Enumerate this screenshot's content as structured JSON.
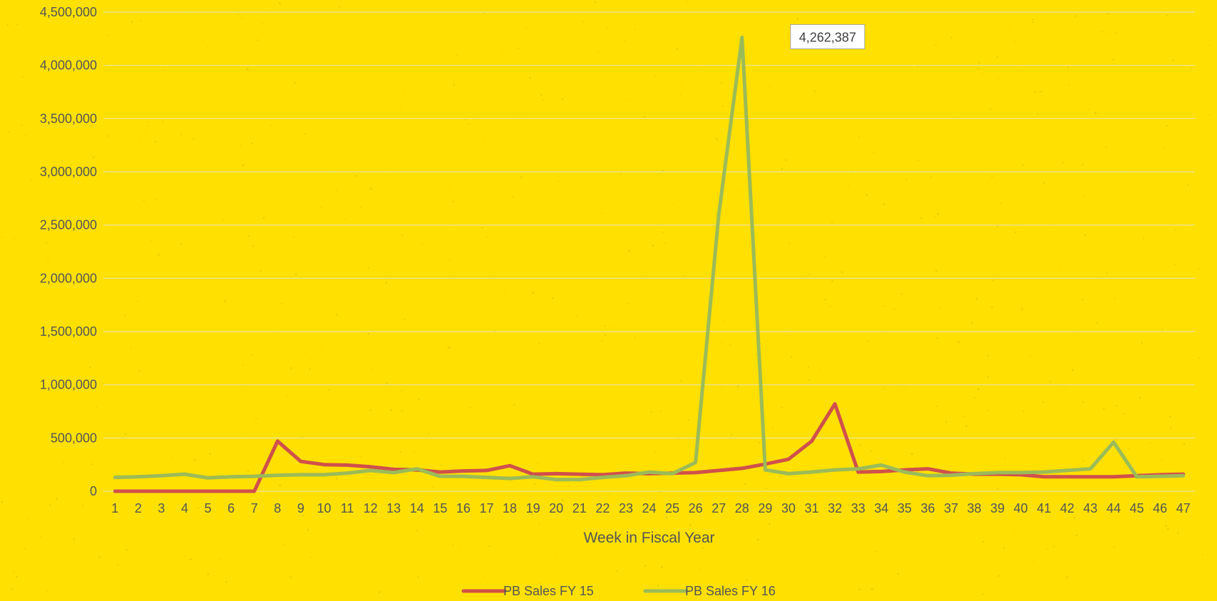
{
  "chart_data": {
    "type": "line",
    "title": "",
    "xlabel": "Week in Fiscal Year",
    "ylabel": "",
    "ylim": [
      0,
      4500000
    ],
    "y_ticks": [
      "0",
      "500,000",
      "1,000,000",
      "1,500,000",
      "2,000,000",
      "2,500,000",
      "3,000,000",
      "3,500,000",
      "4,000,000",
      "4,500,000"
    ],
    "x": [
      1,
      2,
      3,
      4,
      5,
      6,
      7,
      8,
      9,
      10,
      11,
      12,
      13,
      14,
      15,
      16,
      17,
      18,
      19,
      20,
      21,
      22,
      23,
      24,
      25,
      26,
      27,
      28,
      29,
      30,
      31,
      32,
      33,
      34,
      35,
      36,
      37,
      38,
      39,
      40,
      41,
      42,
      43,
      44,
      45,
      46,
      47
    ],
    "grid": true,
    "legend_position": "bottom",
    "series": [
      {
        "name": "PB Sales FY 15",
        "color": "#D0504B",
        "values": [
          0,
          0,
          0,
          0,
          0,
          0,
          0,
          470000,
          280000,
          250000,
          245000,
          230000,
          205000,
          200000,
          180000,
          190000,
          195000,
          240000,
          160000,
          165000,
          160000,
          155000,
          170000,
          165000,
          170000,
          175000,
          195000,
          215000,
          255000,
          300000,
          470000,
          820000,
          180000,
          185000,
          200000,
          210000,
          170000,
          160000,
          160000,
          155000,
          135000,
          135000,
          135000,
          135000,
          145000,
          155000,
          160000
        ]
      },
      {
        "name": "PB Sales FY 16",
        "color": "#9BBB59",
        "values": [
          130000,
          135000,
          145000,
          160000,
          125000,
          135000,
          140000,
          150000,
          155000,
          155000,
          170000,
          195000,
          175000,
          210000,
          140000,
          140000,
          130000,
          120000,
          135000,
          110000,
          110000,
          130000,
          145000,
          180000,
          165000,
          270000,
          2600000,
          4262387,
          200000,
          165000,
          180000,
          200000,
          210000,
          245000,
          180000,
          145000,
          150000,
          165000,
          175000,
          175000,
          180000,
          195000,
          210000,
          460000,
          135000,
          140000,
          145000
        ]
      }
    ],
    "annotations": [
      {
        "series": "PB Sales FY 16",
        "x": 28,
        "label": "4,262,387"
      }
    ]
  }
}
